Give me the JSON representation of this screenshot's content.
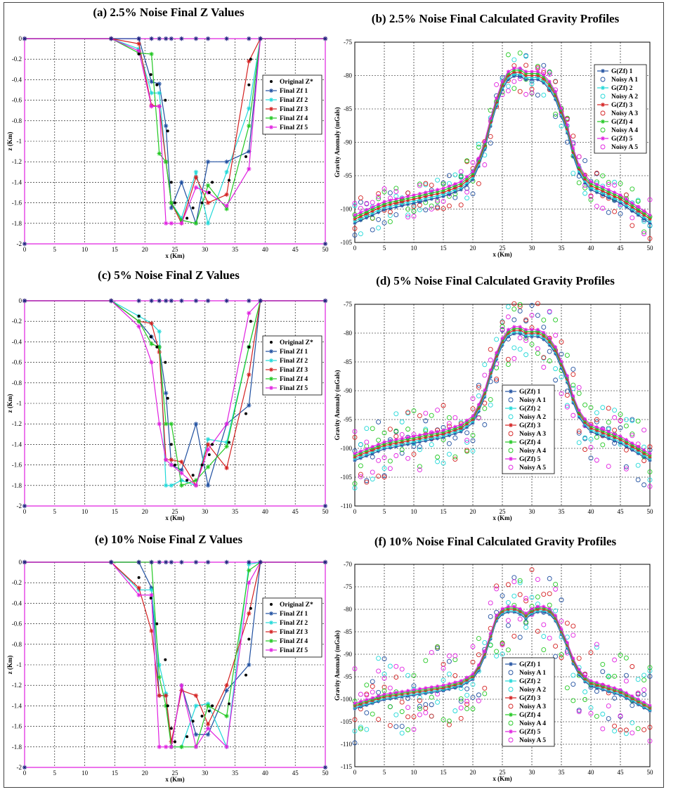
{
  "chart_data": [
    {
      "id": "a",
      "type": "line",
      "title": "(a) 2.5% Noise Final Z Values",
      "xlabel": "x (Km)",
      "ylabel": "z (Km)",
      "xlim": [
        0,
        50
      ],
      "ylim": [
        -2,
        0
      ],
      "xticks": [
        0,
        5,
        10,
        15,
        20,
        25,
        30,
        35,
        40,
        45,
        50
      ],
      "yticks": [
        0,
        -0.2,
        -0.4,
        -0.6,
        -0.8,
        -1,
        -1.2,
        -1.4,
        -1.6,
        -1.8,
        -2
      ],
      "x_stations": [
        0,
        14.4,
        19,
        21.1,
        22.4,
        23.5,
        24.4,
        26.1,
        28.5,
        30.5,
        33.6,
        37.3,
        39.2,
        50
      ],
      "original": {
        "name": "Original Z*",
        "x": [
          19,
          21,
          22,
          23.4,
          23.8,
          24.4,
          25,
          27,
          28,
          29.5,
          30.7,
          31.2,
          34,
          36.8,
          37.3,
          37.6
        ],
        "y": [
          -0.15,
          -0.35,
          -0.45,
          -0.6,
          -0.9,
          -1.4,
          -1.6,
          -1.75,
          -1.65,
          -1.6,
          -1.5,
          -1.4,
          -1.38,
          -1.15,
          -0.45,
          -0.2
        ]
      },
      "series": [
        {
          "name": "Final Zf 1",
          "color": "#1f4fa0",
          "marker": "star",
          "y": [
            0,
            0,
            0,
            -0.42,
            -0.44,
            -0.85,
            -1.65,
            -1.4,
            -1.8,
            -1.2,
            -1.2,
            -1.1,
            0,
            0
          ]
        },
        {
          "name": "Final Zf 2",
          "color": "#20d8d8",
          "marker": "star",
          "y": [
            0,
            0,
            -0.1,
            -0.53,
            -0.53,
            -1.2,
            -1.6,
            -1.75,
            -1.3,
            -1.8,
            -1.3,
            -0.68,
            0,
            0
          ]
        },
        {
          "name": "Final Zf 3",
          "color": "#d42020",
          "marker": "star",
          "y": [
            0,
            0,
            -0.05,
            -0.65,
            -0.66,
            -1.2,
            -1.6,
            -1.8,
            -1.35,
            -1.6,
            -1.52,
            -0.22,
            0,
            0
          ]
        },
        {
          "name": "Final Zf 4",
          "color": "#22c822",
          "marker": "star",
          "y": [
            0,
            0,
            -0.14,
            -0.15,
            -1.12,
            -1.2,
            -1.6,
            -1.77,
            -1.8,
            -1.43,
            -1.66,
            -0.85,
            0,
            0
          ]
        },
        {
          "name": "Final Zf 5",
          "color": "#e020e0",
          "marker": "star",
          "y": [
            0,
            0,
            -0.12,
            -0.66,
            -0.66,
            -1.8,
            -1.8,
            -1.8,
            -1.45,
            -1.5,
            -1.63,
            -1.27,
            0,
            0
          ]
        }
      ]
    },
    {
      "id": "b",
      "type": "line",
      "title": "(b) 2.5% Noise Final Calculated Gravity Profiles",
      "xlabel": "x (Km)",
      "ylabel": "Gravity Anomaly (mGals)",
      "xlim": [
        0,
        50
      ],
      "ylim": [
        -105,
        -75
      ],
      "xticks": [
        0,
        5,
        10,
        15,
        20,
        25,
        30,
        35,
        40,
        45,
        50
      ],
      "yticks": [
        -75,
        -80,
        -85,
        -90,
        -95,
        -100,
        -105
      ],
      "noise_amp": 3.2,
      "legend": [
        "G(Zf) 1",
        "Noisy A 1",
        "G(Zf) 2",
        "Noisy A 2",
        "G(Zf) 3",
        "Noisy A 3",
        "G(Zf) 4",
        "Noisy A 4",
        "G(Zf) 5",
        "Noisy A 5"
      ],
      "colors": [
        "#1f4fa0",
        "#20d8d8",
        "#d42020",
        "#22c822",
        "#e020e0"
      ],
      "profile_x": [
        0,
        5,
        10,
        15,
        18,
        20,
        21,
        22,
        23,
        24,
        25,
        26,
        27,
        28,
        29,
        30,
        31,
        32,
        33,
        34,
        35,
        36,
        37,
        38,
        39,
        40,
        45,
        50
      ],
      "profile_y": [
        -101.5,
        -99.5,
        -98.5,
        -97.5,
        -96.5,
        -95,
        -93,
        -90.5,
        -87,
        -84,
        -81.5,
        -80,
        -79.5,
        -79.5,
        -80,
        -80,
        -80,
        -80.5,
        -81.5,
        -83,
        -85.5,
        -88,
        -91.5,
        -94,
        -95.5,
        -96.5,
        -98.5,
        -101.5
      ]
    },
    {
      "id": "c",
      "type": "line",
      "title": "(c) 5% Noise Final Z Values",
      "xlabel": "x (Km)",
      "ylabel": "z (Km)",
      "xlim": [
        0,
        50
      ],
      "ylim": [
        -2,
        0
      ],
      "xticks": [
        0,
        5,
        10,
        15,
        20,
        25,
        30,
        35,
        40,
        45,
        50
      ],
      "yticks": [
        0,
        -0.2,
        -0.4,
        -0.6,
        -0.8,
        -1,
        -1.2,
        -1.4,
        -1.6,
        -1.8,
        -2
      ],
      "x_stations": [
        0,
        14.4,
        19,
        21.1,
        22.4,
        23.5,
        24.4,
        26.1,
        28.5,
        30.5,
        33.6,
        37.3,
        39.2,
        50
      ],
      "original": {
        "name": "Original Z*",
        "x": [
          19,
          21,
          22,
          23.4,
          23.8,
          24.4,
          25,
          27,
          28,
          29.5,
          30.7,
          31.2,
          34,
          36.8,
          37.3,
          37.6
        ],
        "y": [
          -0.15,
          -0.35,
          -0.45,
          -0.6,
          -0.95,
          -1.4,
          -1.6,
          -1.75,
          -1.7,
          -1.6,
          -1.5,
          -1.4,
          -1.38,
          -1.1,
          -0.45,
          -0.2
        ]
      },
      "series": [
        {
          "name": "Final Zf 1",
          "color": "#1f4fa0",
          "marker": "star",
          "y": [
            0,
            0,
            -0.2,
            -0.35,
            -0.45,
            -0.9,
            -1.6,
            -1.65,
            -1.2,
            -1.8,
            -1.2,
            -1.02,
            0,
            0
          ]
        },
        {
          "name": "Final Zf 2",
          "color": "#20d8d8",
          "marker": "star",
          "y": [
            0,
            0,
            -0.15,
            -0.22,
            -0.3,
            -1.8,
            -1.8,
            -1.75,
            -1.8,
            -1.35,
            -1.38,
            -0.45,
            0,
            0
          ]
        },
        {
          "name": "Final Zf 3",
          "color": "#d42020",
          "marker": "star",
          "y": [
            0,
            0,
            -0.2,
            -0.22,
            -0.5,
            -1.55,
            -1.55,
            -1.57,
            -1.8,
            -1.4,
            -1.63,
            -0.72,
            0,
            0
          ]
        },
        {
          "name": "Final Zf 4",
          "color": "#22c822",
          "marker": "star",
          "y": [
            0,
            0,
            -0.2,
            -0.42,
            -0.45,
            -1.2,
            -1.2,
            -1.8,
            -1.75,
            -1.62,
            -1.42,
            -0.45,
            0,
            0
          ]
        },
        {
          "name": "Final Zf 5",
          "color": "#e020e0",
          "marker": "star",
          "y": [
            0,
            0,
            -0.25,
            -0.6,
            -1.2,
            -1.55,
            -1.6,
            -1.68,
            -1.8,
            -1.45,
            -1.2,
            -0.12,
            0,
            0
          ]
        }
      ]
    },
    {
      "id": "d",
      "type": "line",
      "title": "(d) 5% Noise Final Calculated Gravity Profiles",
      "xlabel": "x (Km)",
      "ylabel": "Gravity Anomaly (mGals)",
      "xlim": [
        0,
        50
      ],
      "ylim": [
        -110,
        -75
      ],
      "xticks": [
        0,
        5,
        10,
        15,
        20,
        25,
        30,
        35,
        40,
        45,
        50
      ],
      "yticks": [
        -75,
        -80,
        -85,
        -90,
        -95,
        -100,
        -105,
        -110
      ],
      "noise_amp": 5.5,
      "legend": [
        "G(Zf) 1",
        "Noisy A 1",
        "G(Zf) 2",
        "Noisy A 2",
        "G(Zf) 3",
        "Noisy A 3",
        "G(Zf) 4",
        "Noisy A 4",
        "G(Zf) 5",
        "Noisy A 5"
      ],
      "colors": [
        "#1f4fa0",
        "#20d8d8",
        "#d42020",
        "#22c822",
        "#e020e0"
      ],
      "profile_x": [
        0,
        5,
        10,
        15,
        18,
        20,
        21,
        22,
        23,
        24,
        25,
        26,
        27,
        28,
        29,
        30,
        31,
        32,
        33,
        34,
        35,
        36,
        37,
        38,
        39,
        40,
        45,
        50
      ],
      "profile_y": [
        -101.5,
        -99.5,
        -98.5,
        -97.5,
        -96.5,
        -95,
        -93,
        -90.5,
        -87,
        -84,
        -81.5,
        -80,
        -79.5,
        -79.5,
        -80,
        -80,
        -80,
        -80.5,
        -81.5,
        -83,
        -85.5,
        -88,
        -91.5,
        -94,
        -95.5,
        -96.5,
        -98.5,
        -101.5
      ]
    },
    {
      "id": "e",
      "type": "line",
      "title": "(e) 10% Noise Final Z Values",
      "xlabel": "x (Km)",
      "ylabel": "z (Km)",
      "xlim": [
        0,
        50
      ],
      "ylim": [
        -2,
        0
      ],
      "xticks": [
        0,
        5,
        10,
        15,
        20,
        25,
        30,
        35,
        40,
        45,
        50
      ],
      "yticks": [
        0,
        -0.2,
        -0.4,
        -0.6,
        -0.8,
        -1,
        -1.2,
        -1.4,
        -1.6,
        -1.8,
        -2
      ],
      "x_stations": [
        0,
        14.4,
        19,
        21.1,
        22.4,
        23.5,
        24.4,
        26.1,
        28.5,
        30.5,
        33.6,
        37.3,
        39.2,
        50
      ],
      "original": {
        "name": "Original Z*",
        "x": [
          19,
          21,
          22,
          23.4,
          23.8,
          24.4,
          25,
          27,
          28,
          29.5,
          30.7,
          31.2,
          34,
          36.8,
          37.3,
          37.6
        ],
        "y": [
          -0.15,
          -0.35,
          -0.6,
          -0.95,
          -1.4,
          -1.62,
          -1.75,
          -1.7,
          -1.55,
          -1.5,
          -1.45,
          -1.4,
          -1.38,
          -1.1,
          -0.75,
          -0.45
        ]
      },
      "series": [
        {
          "name": "Final Zf 1",
          "color": "#1f4fa0",
          "marker": "star",
          "y": [
            0,
            0,
            0,
            -0.25,
            -1.3,
            -1.3,
            -1.8,
            -1.2,
            -1.68,
            -1.68,
            -1.25,
            -1,
            0,
            0
          ]
        },
        {
          "name": "Final Zf 2",
          "color": "#20d8d8",
          "marker": "star",
          "y": [
            0,
            0,
            -0.27,
            -0.27,
            -1,
            -1.28,
            -1.8,
            -1.8,
            -1.4,
            -1.38,
            -1.8,
            -0.02,
            0,
            0
          ]
        },
        {
          "name": "Final Zf 3",
          "color": "#d42020",
          "marker": "star",
          "y": [
            0,
            0,
            -0.25,
            -0.67,
            -1.3,
            -1.3,
            -1.75,
            -1.25,
            -1.3,
            -1.58,
            -1.2,
            -0.5,
            0,
            0
          ]
        },
        {
          "name": "Final Zf 4",
          "color": "#22c822",
          "marker": "star",
          "y": [
            0,
            0,
            0,
            0,
            -1.12,
            -1.4,
            -1.8,
            -1.8,
            -1.8,
            -1.4,
            -1.5,
            -0.08,
            0,
            0
          ]
        },
        {
          "name": "Final Zf 5",
          "color": "#e020e0",
          "marker": "star",
          "y": [
            0,
            0,
            -0.32,
            -0.32,
            -1.8,
            -1.8,
            -1.8,
            -1.2,
            -1.8,
            -1.62,
            -1.8,
            -0.2,
            0,
            0
          ]
        }
      ]
    },
    {
      "id": "f",
      "type": "line",
      "title": "(f) 10% Noise Final Calculated Gravity Profiles",
      "xlabel": "x (Km)",
      "ylabel": "Gravity Anomaly (mGals)",
      "xlim": [
        0,
        50
      ],
      "ylim": [
        -115,
        -70
      ],
      "xticks": [
        0,
        5,
        10,
        15,
        20,
        25,
        30,
        35,
        40,
        45,
        50
      ],
      "yticks": [
        -70,
        -75,
        -80,
        -85,
        -90,
        -95,
        -100,
        -105,
        -110,
        -115
      ],
      "noise_amp": 9.5,
      "legend": [
        "G(Zf) 1",
        "Noisy A 1",
        "G(Zf) 2",
        "Noisy A 2",
        "G(Zf) 3",
        "Noisy A 3",
        "G(Zf) 4",
        "Noisy A 4",
        "G(Zf) 5",
        "Noisy A 5"
      ],
      "colors": [
        "#1f4fa0",
        "#20d8d8",
        "#d42020",
        "#22c822",
        "#e020e0"
      ],
      "profile_x": [
        0,
        5,
        10,
        15,
        18,
        20,
        21,
        22,
        23,
        24,
        25,
        26,
        27,
        28,
        29,
        30,
        31,
        32,
        33,
        34,
        35,
        36,
        37,
        38,
        39,
        40,
        45,
        50
      ],
      "profile_y": [
        -101.5,
        -99.5,
        -98.5,
        -97.5,
        -96.5,
        -95,
        -93,
        -90,
        -86,
        -82,
        -80.5,
        -80,
        -80,
        -80.5,
        -81.5,
        -80.5,
        -80,
        -80,
        -80.5,
        -82,
        -85,
        -88,
        -91.5,
        -94,
        -95.5,
        -96.5,
        -98.5,
        -102
      ]
    }
  ]
}
